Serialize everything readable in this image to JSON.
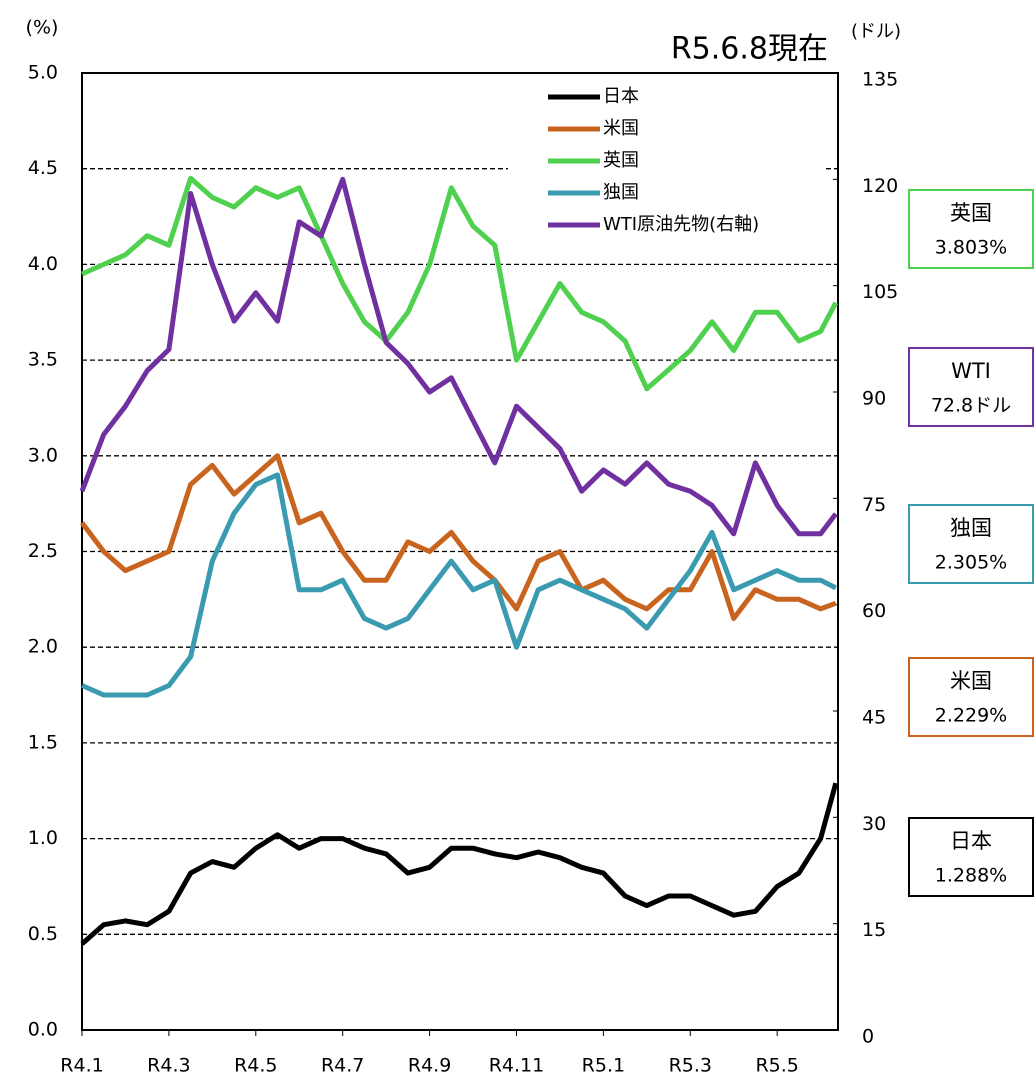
{
  "chart_data": {
    "type": "line",
    "title": "R5.6.8現在",
    "y_label": "(%)",
    "y2_label": "(ドル)",
    "x": [
      0,
      0.5,
      1,
      1.5,
      2,
      2.5,
      3,
      3.5,
      4,
      4.5,
      5,
      5.5,
      6,
      6.5,
      7,
      7.5,
      8,
      8.5,
      9,
      9.5,
      10,
      10.5,
      11,
      11.5,
      12,
      12.5,
      13,
      13.5,
      14,
      14.5,
      15,
      15.5,
      16,
      16.5,
      17,
      17.35
    ],
    "xlim": [
      0,
      17.4
    ],
    "xticks": [
      {
        "value": 0,
        "label": "R4.1"
      },
      {
        "value": 2,
        "label": "R4.3"
      },
      {
        "value": 4,
        "label": "R4.5"
      },
      {
        "value": 6,
        "label": "R4.7"
      },
      {
        "value": 8,
        "label": "R4.9"
      },
      {
        "value": 10,
        "label": "R4.11"
      },
      {
        "value": 12,
        "label": "R5.1"
      },
      {
        "value": 14,
        "label": "R5.3"
      },
      {
        "value": 16,
        "label": "R5.5"
      }
    ],
    "ylim": [
      0,
      5
    ],
    "yticks": [
      {
        "value": 0,
        "label": "0.0"
      },
      {
        "value": 0.5,
        "label": "0.5"
      },
      {
        "value": 1,
        "label": "1.0"
      },
      {
        "value": 1.5,
        "label": "1.5"
      },
      {
        "value": 2,
        "label": "2.0"
      },
      {
        "value": 2.5,
        "label": "2.5"
      },
      {
        "value": 3,
        "label": "3.0"
      },
      {
        "value": 3.5,
        "label": "3.5"
      },
      {
        "value": 4,
        "label": "4.0"
      },
      {
        "value": 4.5,
        "label": "4.5"
      },
      {
        "value": 5,
        "label": "5.0"
      }
    ],
    "y2lim": [
      0,
      135
    ],
    "y2ticks": [
      0,
      15,
      30,
      45,
      60,
      75,
      90,
      105,
      120,
      135
    ],
    "grid": true,
    "legend": "top",
    "series": [
      {
        "name": "日本",
        "color": "#000000",
        "values": [
          0.45,
          0.55,
          0.57,
          0.55,
          0.62,
          0.82,
          0.88,
          0.85,
          0.95,
          1.02,
          0.95,
          1.0,
          1.0,
          0.95,
          0.92,
          0.82,
          0.85,
          0.95,
          0.95,
          0.92,
          0.9,
          0.93,
          0.9,
          0.85,
          0.82,
          0.7,
          0.65,
          0.7,
          0.7,
          0.65,
          0.6,
          0.62,
          0.75,
          0.82,
          1.0,
          1.29
        ]
      },
      {
        "name": "米国",
        "color": "#c8641e",
        "values": [
          2.65,
          2.5,
          2.4,
          2.45,
          2.5,
          2.85,
          2.95,
          2.8,
          2.9,
          3.0,
          2.65,
          2.7,
          2.5,
          2.35,
          2.35,
          2.55,
          2.5,
          2.6,
          2.45,
          2.35,
          2.2,
          2.45,
          2.5,
          2.3,
          2.35,
          2.25,
          2.2,
          2.3,
          2.3,
          2.5,
          2.15,
          2.3,
          2.25,
          2.25,
          2.2,
          2.23
        ]
      },
      {
        "name": "英国",
        "color": "#4fd04f",
        "values": [
          3.95,
          4.0,
          4.05,
          4.15,
          4.1,
          4.45,
          4.35,
          4.3,
          4.4,
          4.35,
          4.4,
          4.15,
          3.9,
          3.7,
          3.6,
          3.75,
          4.0,
          4.4,
          4.2,
          4.1,
          3.5,
          3.7,
          3.9,
          3.75,
          3.7,
          3.6,
          3.35,
          3.45,
          3.55,
          3.7,
          3.55,
          3.75,
          3.75,
          3.6,
          3.65,
          3.8
        ]
      },
      {
        "name": "独国",
        "color": "#3a9ab0",
        "values": [
          1.8,
          1.75,
          1.75,
          1.75,
          1.8,
          1.95,
          2.45,
          2.7,
          2.85,
          2.9,
          2.3,
          2.3,
          2.35,
          2.15,
          2.1,
          2.15,
          2.3,
          2.45,
          2.3,
          2.35,
          2.0,
          2.3,
          2.35,
          2.3,
          2.25,
          2.2,
          2.1,
          2.25,
          2.4,
          2.6,
          2.3,
          2.35,
          2.4,
          2.35,
          2.35,
          2.31
        ]
      },
      {
        "name": "WTI原油先物(右軸)",
        "color": "#7030a0",
        "axis": "y2",
        "values": [
          76,
          84,
          88,
          93,
          96,
          118,
          108,
          100,
          104,
          100,
          114,
          112,
          120,
          108,
          97,
          94,
          90,
          92,
          86,
          80,
          88,
          85,
          82,
          76,
          79,
          77,
          80,
          77,
          76,
          74,
          70,
          80,
          74,
          70,
          70,
          72.8
        ]
      }
    ],
    "annotations": [
      {
        "name": "英国",
        "value": "3.803%",
        "color": "#4fd04f"
      },
      {
        "name": "WTI",
        "value": "72.8ドル",
        "color": "#7030a0"
      },
      {
        "name": "独国",
        "value": "2.305%",
        "color": "#3a9ab0"
      },
      {
        "name": "米国",
        "value": "2.229%",
        "color": "#c8641e"
      },
      {
        "name": "日本",
        "value": "1.288%",
        "color": "#000000"
      }
    ]
  }
}
